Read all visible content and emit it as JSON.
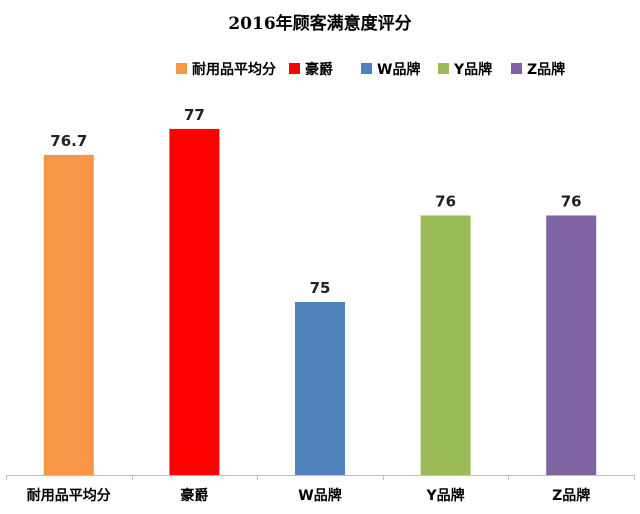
{
  "chart_data": {
    "type": "bar",
    "title": "2016年顾客满意度评分",
    "xlabel": "",
    "ylabel": "",
    "categories": [
      "耐用品平均分",
      "豪爵",
      "W品牌",
      "Y品牌",
      "Z品牌"
    ],
    "values": [
      76.7,
      77,
      75,
      76,
      76
    ],
    "value_labels": [
      "76.7",
      "77",
      "75",
      "76",
      "76"
    ],
    "colors": [
      "#F79646",
      "#FF0000",
      "#4F81BD",
      "#9BBB59",
      "#8064A2"
    ],
    "legend": [
      "耐用品平均分",
      "豪爵",
      "W品牌",
      "Y品牌",
      "Z品牌"
    ],
    "legend_position": "top",
    "ylim": [
      73,
      77.6
    ],
    "grid": false,
    "y_axis_visible": false
  }
}
